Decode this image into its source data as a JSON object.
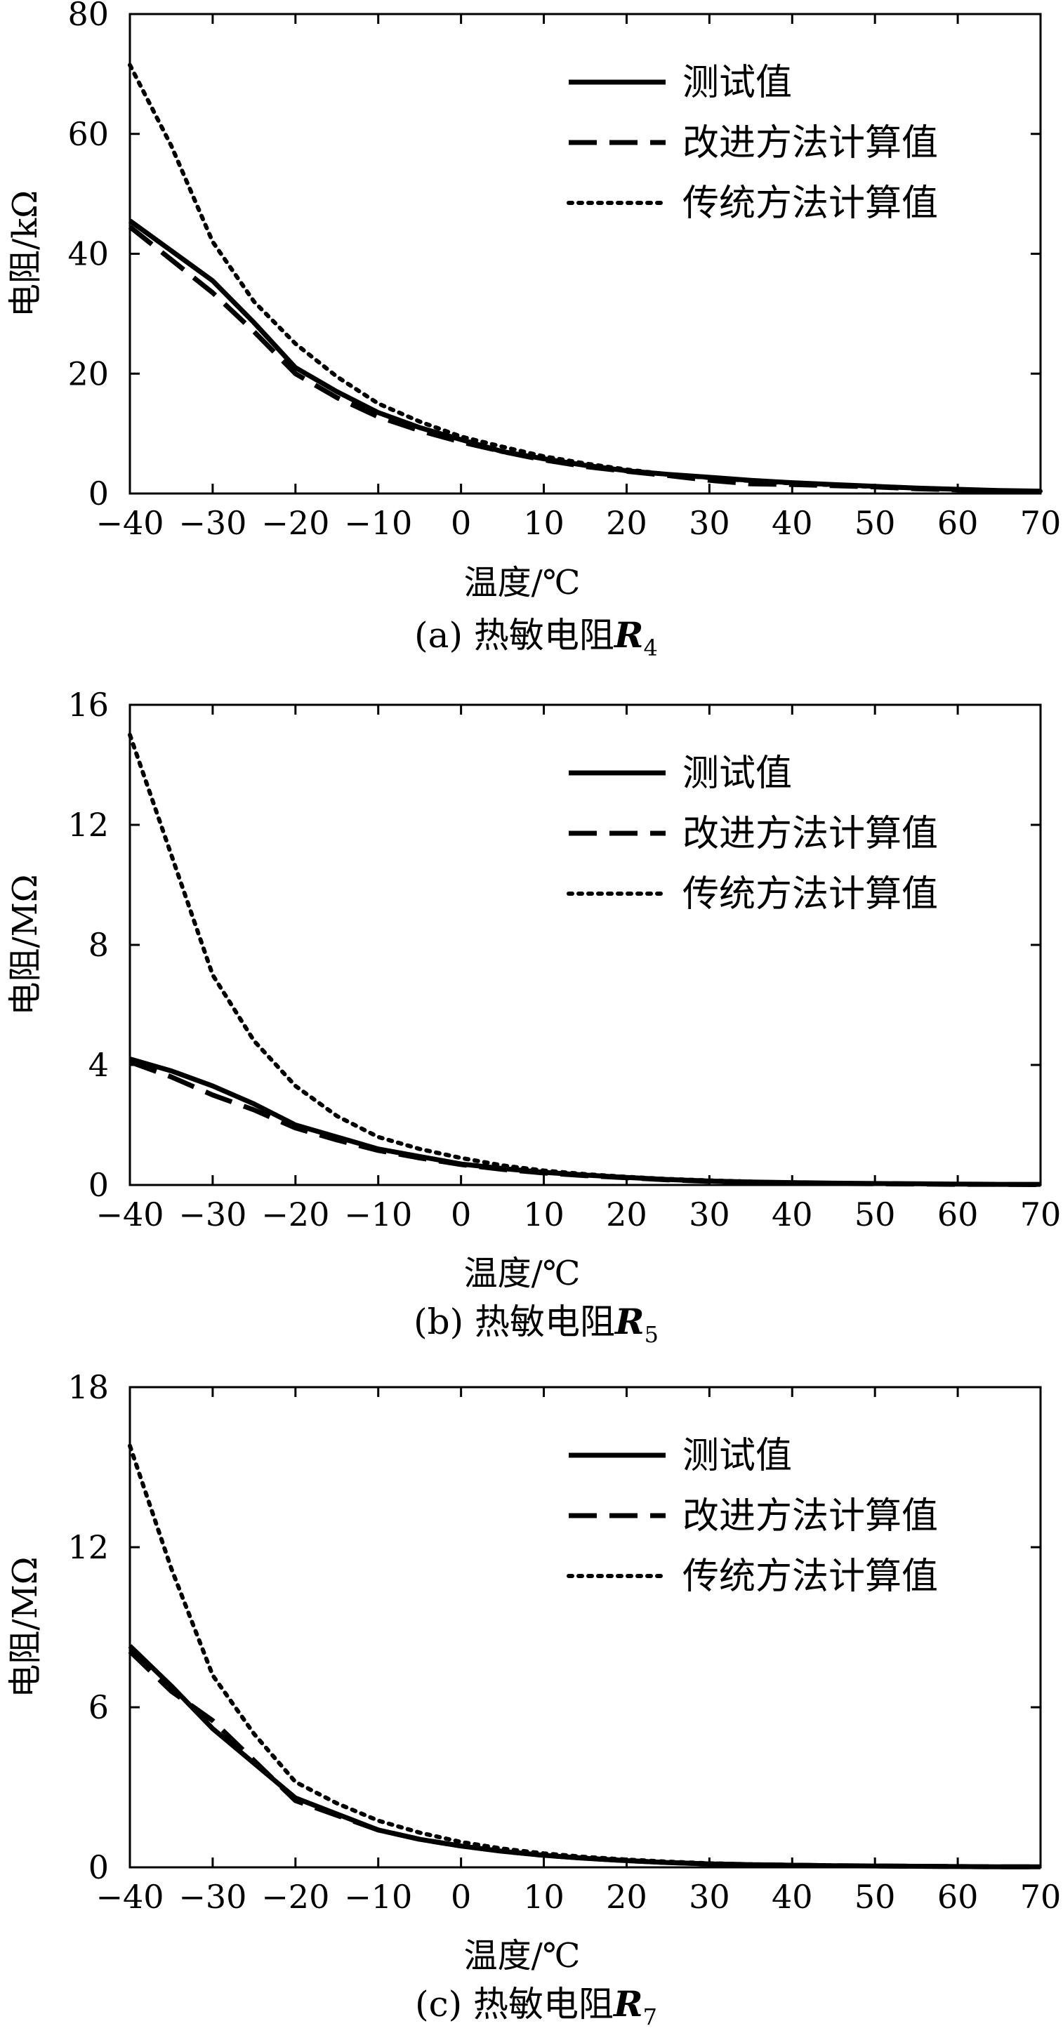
{
  "chart_data": [
    {
      "type": "line",
      "caption": {
        "prefix": "(a) 热敏电阻",
        "var": "R",
        "sub": "4"
      },
      "xlabel": "温度/℃",
      "ylabel": "电阻/kΩ",
      "xlim": [
        -40,
        70
      ],
      "ylim": [
        0,
        80
      ],
      "xticks": [
        -40,
        -30,
        -20,
        -10,
        0,
        10,
        20,
        30,
        40,
        50,
        60,
        70
      ],
      "yticks": [
        0,
        20,
        40,
        60,
        80
      ],
      "xtick_labels": [
        "−40",
        "−30",
        "−20",
        "−10",
        "0",
        "10",
        "20",
        "30",
        "40",
        "50",
        "60",
        "70"
      ],
      "ytick_labels": [
        "0",
        "20",
        "40",
        "60",
        "80"
      ],
      "legend_position": "top-right",
      "x": [
        -40,
        -35,
        -30,
        -25,
        -20,
        -15,
        -10,
        -5,
        0,
        5,
        10,
        15,
        20,
        25,
        30,
        35,
        40,
        45,
        50,
        55,
        60,
        65,
        70
      ],
      "series": [
        {
          "name": "测试值",
          "style": "solid",
          "values": [
            45.5,
            40.5,
            35.5,
            28.5,
            21.0,
            17.0,
            13.5,
            11.0,
            9.0,
            7.0,
            5.8,
            4.7,
            3.8,
            3.2,
            2.7,
            2.2,
            1.8,
            1.5,
            1.2,
            0.9,
            0.7,
            0.5,
            0.4
          ]
        },
        {
          "name": "改进方法计算值",
          "style": "dashed",
          "values": [
            44.5,
            39.0,
            33.5,
            27.0,
            20.0,
            16.0,
            12.8,
            10.5,
            8.6,
            7.0,
            5.6,
            4.5,
            3.7,
            3.0,
            2.2,
            1.6,
            1.5,
            1.3,
            1.1,
            0.8,
            0.6,
            0.4,
            0.3
          ]
        },
        {
          "name": "传统方法计算值",
          "style": "dotted",
          "values": [
            71.5,
            58.0,
            42.0,
            32.0,
            25.0,
            19.5,
            15.0,
            12.0,
            9.5,
            7.8,
            6.2,
            5.0,
            4.0,
            3.2,
            2.6,
            2.1,
            1.7,
            1.4,
            1.1,
            0.9,
            0.7,
            0.5,
            0.4
          ]
        }
      ]
    },
    {
      "type": "line",
      "caption": {
        "prefix": "(b) 热敏电阻",
        "var": "R",
        "sub": "5"
      },
      "xlabel": "温度/℃",
      "ylabel": "电阻/MΩ",
      "xlim": [
        -40,
        70
      ],
      "ylim": [
        0,
        16
      ],
      "xticks": [
        -40,
        -30,
        -20,
        -10,
        0,
        10,
        20,
        30,
        40,
        50,
        60,
        70
      ],
      "yticks": [
        0,
        4,
        8,
        12,
        16
      ],
      "xtick_labels": [
        "−40",
        "−30",
        "−20",
        "−10",
        "0",
        "10",
        "20",
        "30",
        "40",
        "50",
        "60",
        "70"
      ],
      "ytick_labels": [
        "0",
        "4",
        "8",
        "12",
        "16"
      ],
      "legend_position": "top-right",
      "x": [
        -40,
        -35,
        -30,
        -25,
        -20,
        -15,
        -10,
        -5,
        0,
        5,
        10,
        15,
        20,
        25,
        30,
        35,
        40,
        45,
        50,
        55,
        60,
        65,
        70
      ],
      "series": [
        {
          "name": "测试值",
          "style": "solid",
          "values": [
            4.2,
            3.8,
            3.3,
            2.7,
            2.0,
            1.6,
            1.2,
            0.95,
            0.7,
            0.55,
            0.42,
            0.33,
            0.25,
            0.18,
            0.13,
            0.1,
            0.08,
            0.06,
            0.05,
            0.04,
            0.03,
            0.02,
            0.02
          ]
        },
        {
          "name": "改进方法计算值",
          "style": "dashed",
          "values": [
            4.1,
            3.6,
            3.0,
            2.5,
            1.9,
            1.5,
            1.15,
            0.9,
            0.68,
            0.52,
            0.4,
            0.31,
            0.24,
            0.17,
            0.12,
            0.09,
            0.07,
            0.05,
            0.04,
            0.03,
            0.02,
            0.02,
            0.01
          ]
        },
        {
          "name": "传统方法计算值",
          "style": "dotted",
          "values": [
            15.0,
            11.0,
            7.0,
            4.8,
            3.3,
            2.3,
            1.6,
            1.2,
            0.9,
            0.65,
            0.48,
            0.36,
            0.27,
            0.2,
            0.15,
            0.11,
            0.08,
            0.06,
            0.05,
            0.04,
            0.03,
            0.02,
            0.02
          ]
        }
      ]
    },
    {
      "type": "line",
      "caption": {
        "prefix": "(c) 热敏电阻",
        "var": "R",
        "sub": "7"
      },
      "xlabel": "温度/℃",
      "ylabel": "电阻/MΩ",
      "xlim": [
        -40,
        70
      ],
      "ylim": [
        0,
        18
      ],
      "xticks": [
        -40,
        -30,
        -20,
        -10,
        0,
        10,
        20,
        30,
        40,
        50,
        60,
        70
      ],
      "yticks": [
        0,
        6,
        12,
        18
      ],
      "xtick_labels": [
        "−40",
        "−30",
        "−20",
        "−10",
        "0",
        "10",
        "20",
        "30",
        "40",
        "50",
        "60",
        "70"
      ],
      "ytick_labels": [
        "0",
        "6",
        "12",
        "18"
      ],
      "legend_position": "top-right",
      "x": [
        -40,
        -35,
        -30,
        -25,
        -20,
        -15,
        -10,
        -5,
        0,
        5,
        10,
        15,
        20,
        25,
        30,
        35,
        40,
        45,
        50,
        55,
        60,
        65,
        70
      ],
      "series": [
        {
          "name": "测试值",
          "style": "solid",
          "values": [
            8.3,
            6.8,
            5.2,
            3.9,
            2.6,
            2.0,
            1.4,
            1.05,
            0.8,
            0.6,
            0.45,
            0.34,
            0.25,
            0.18,
            0.13,
            0.1,
            0.08,
            0.06,
            0.05,
            0.04,
            0.03,
            0.02,
            0.02
          ]
        },
        {
          "name": "改进方法计算值",
          "style": "dashed",
          "values": [
            8.1,
            6.6,
            5.5,
            4.0,
            2.5,
            1.95,
            1.4,
            1.05,
            0.8,
            0.6,
            0.45,
            0.34,
            0.25,
            0.18,
            0.13,
            0.1,
            0.08,
            0.06,
            0.05,
            0.04,
            0.03,
            0.02,
            0.02
          ]
        },
        {
          "name": "传统方法计算值",
          "style": "dotted",
          "values": [
            15.8,
            11.2,
            7.2,
            5.0,
            3.2,
            2.4,
            1.75,
            1.3,
            0.95,
            0.7,
            0.52,
            0.39,
            0.29,
            0.21,
            0.15,
            0.11,
            0.09,
            0.07,
            0.05,
            0.04,
            0.03,
            0.02,
            0.02
          ]
        }
      ]
    }
  ]
}
